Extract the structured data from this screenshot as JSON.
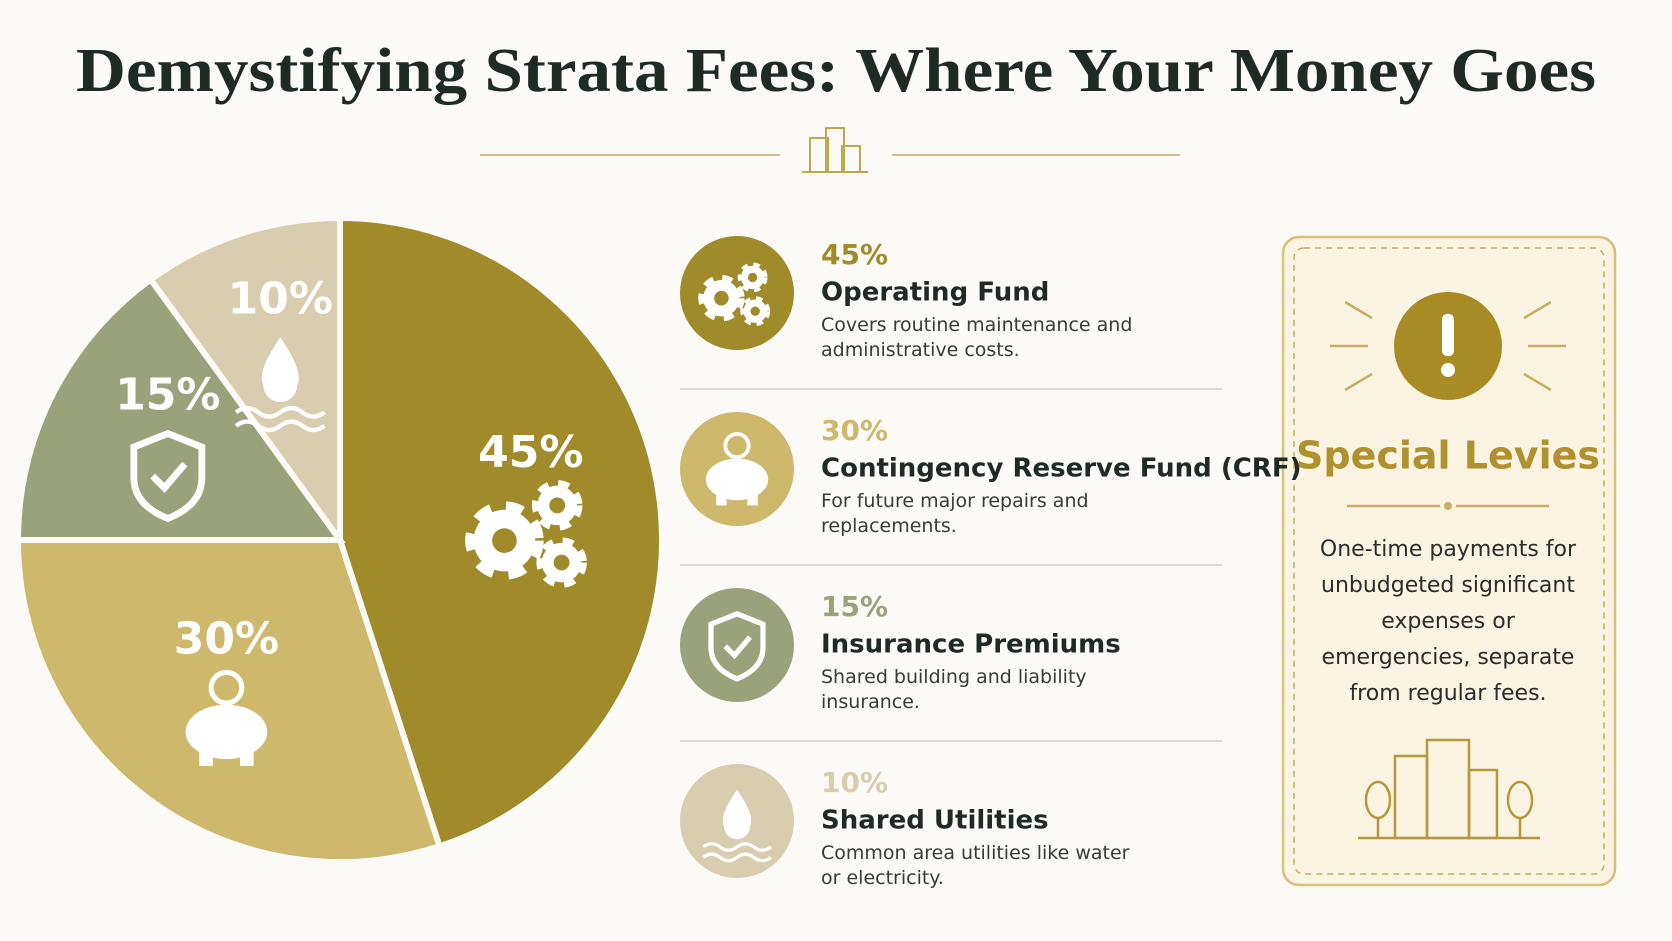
{
  "chart_data": {
    "type": "pie",
    "title": "Demystifying Strata Fees: Where Your Money Goes",
    "categories": [
      "Operating Fund",
      "Contingency Reserve Fund (CRF)",
      "Insurance Premiums",
      "Shared Utilities"
    ],
    "values": [
      45,
      30,
      15,
      10
    ],
    "value_labels": [
      "45%",
      "30%",
      "15%",
      "10%"
    ],
    "colors": [
      "#a08a2a",
      "#cdb86c",
      "#9aa27c",
      "#d9cdb0"
    ],
    "descriptions": [
      "Covers routine maintenance and administrative costs.",
      "For future major repairs and replacements.",
      "Shared building and liability insurance.",
      "Common area utilities like water or electricity."
    ],
    "sidebar": {
      "title": "Special Levies",
      "text": "One-time payments for unbudgeted significant expenses or emergencies, separate from regular fees."
    }
  }
}
